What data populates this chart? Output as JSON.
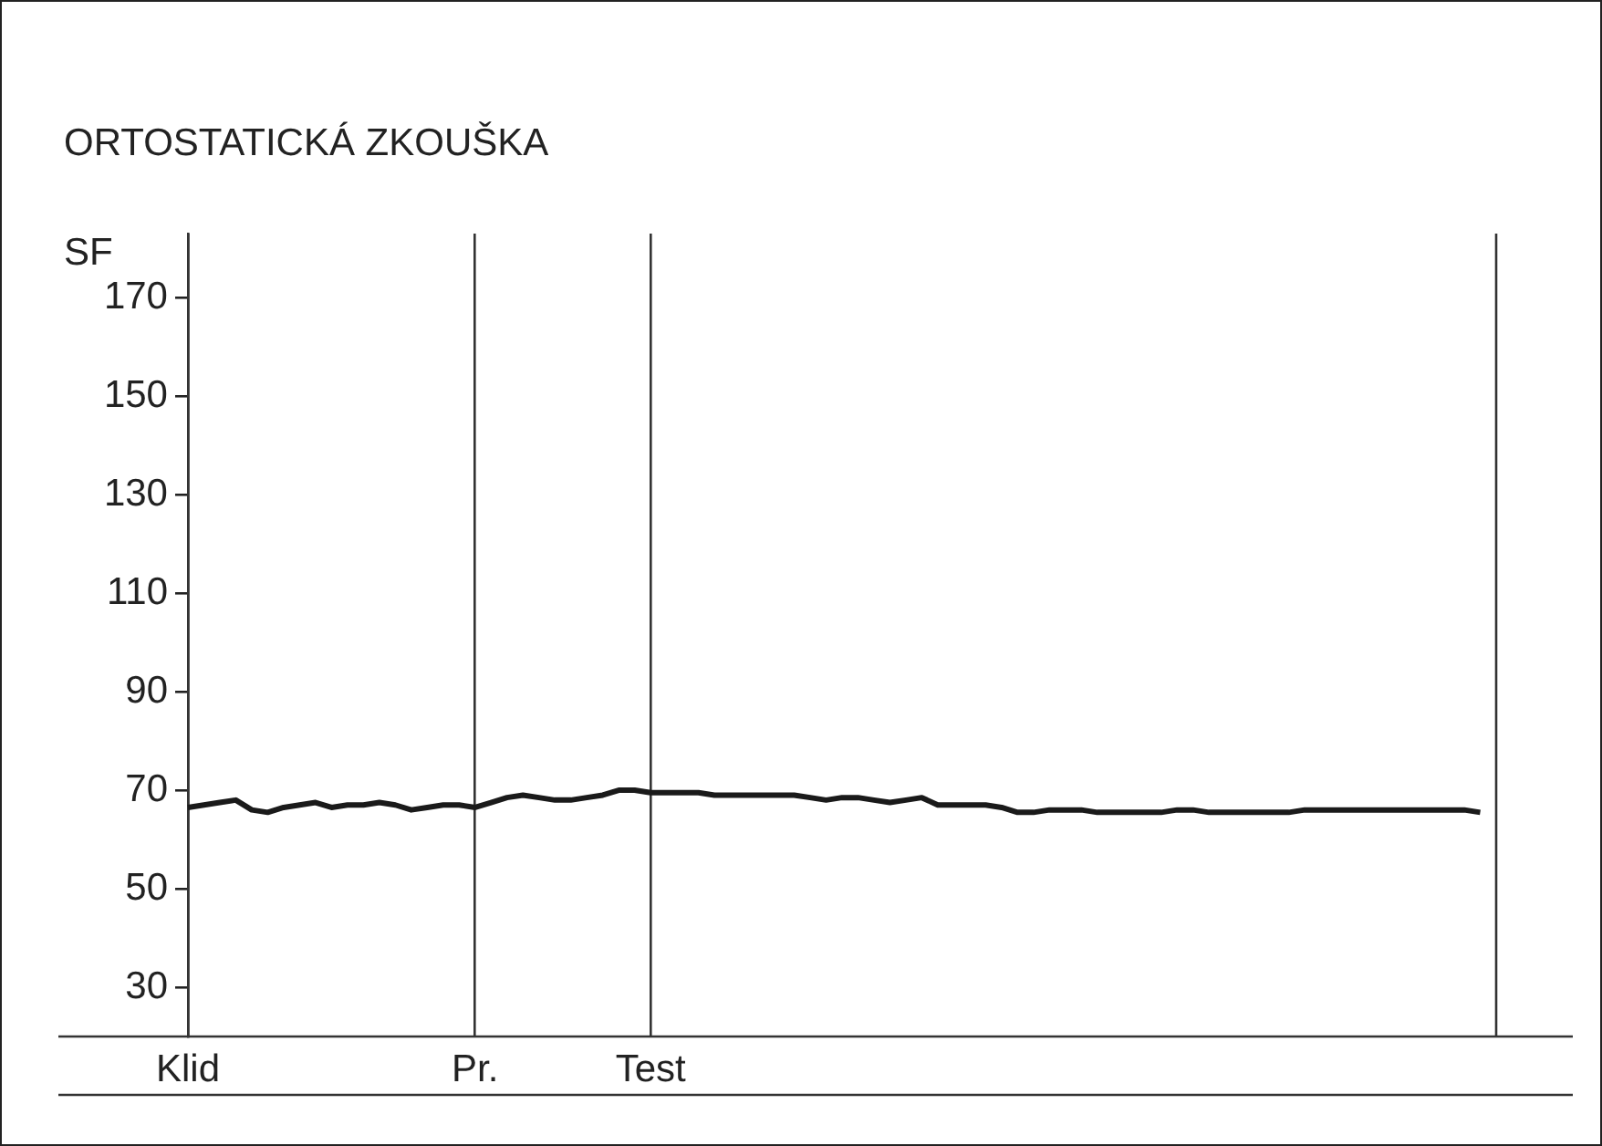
{
  "chart_data": {
    "type": "line",
    "title": "ORTOSTATICKÁ ZKOUŠKA",
    "ylabel": "SF",
    "categories": [
      "Klid",
      null,
      null,
      null,
      null,
      null,
      null,
      null,
      null,
      null,
      null,
      null,
      null,
      null,
      null,
      null,
      null,
      null,
      "Pr.",
      null,
      null,
      null,
      null,
      null,
      null,
      null,
      null,
      null,
      null,
      "Test",
      null,
      null,
      null,
      null,
      null,
      null,
      null,
      null,
      null,
      null,
      null,
      null,
      null,
      null,
      null,
      null,
      null,
      null,
      null,
      null,
      null,
      null,
      null,
      null,
      null,
      null,
      null,
      null,
      null,
      null,
      null,
      null,
      null,
      null,
      null,
      null,
      null,
      null,
      null,
      null,
      null,
      null,
      null,
      null,
      null,
      null,
      null,
      null,
      null,
      null,
      null,
      null,
      null
    ],
    "series": [
      {
        "color": "#1a1a1a",
        "values": [
          66.5,
          67,
          67.5,
          68,
          66,
          65.5,
          66.5,
          67,
          67.5,
          66.5,
          67,
          67,
          67.5,
          67,
          66,
          66.5,
          67,
          67,
          66.5,
          67.5,
          68.5,
          69,
          68.5,
          68,
          68,
          68.5,
          69,
          70,
          70,
          69.5,
          69.5,
          69.5,
          69.5,
          69,
          69,
          69,
          69,
          69,
          69,
          68.5,
          68,
          68.5,
          68.5,
          68,
          67.5,
          68,
          68.5,
          67,
          67,
          67,
          67,
          66.5,
          65.5,
          65.5,
          66,
          66,
          66,
          65.5,
          65.5,
          65.5,
          65.5,
          65.5,
          66,
          66,
          65.5,
          65.5,
          65.5,
          65.5,
          65.5,
          65.5,
          66,
          66,
          66,
          66,
          66,
          66,
          66,
          66,
          66,
          66,
          66,
          65.5,
          null
        ]
      }
    ],
    "ylim": [
      20,
      183
    ],
    "yticks": [
      30,
      50,
      70,
      90,
      110,
      130,
      150,
      170
    ],
    "marker": "none",
    "legend": false,
    "grid": "x"
  }
}
